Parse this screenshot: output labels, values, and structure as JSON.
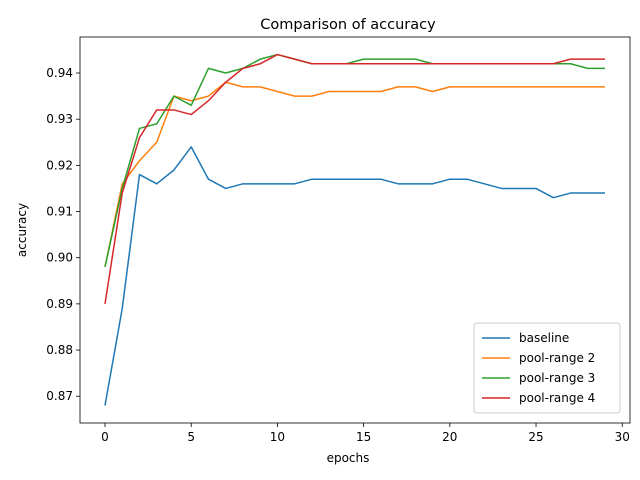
{
  "chart_data": {
    "type": "line",
    "title": "Comparison of accuracy",
    "xlabel": "epochs",
    "ylabel": "accuracy",
    "xlim": [
      -1.45,
      30.45
    ],
    "ylim": [
      0.8642,
      0.9478
    ],
    "xticks": [
      0,
      5,
      10,
      15,
      20,
      25,
      30
    ],
    "yticks": [
      0.87,
      0.88,
      0.89,
      0.9,
      0.91,
      0.92,
      0.93,
      0.94
    ],
    "grid": false,
    "legend_position": "lower-right",
    "x": [
      0,
      1,
      2,
      3,
      4,
      5,
      6,
      7,
      8,
      9,
      10,
      11,
      12,
      13,
      14,
      15,
      16,
      17,
      18,
      19,
      20,
      21,
      22,
      23,
      24,
      25,
      26,
      27,
      28,
      29
    ],
    "series": [
      {
        "name": "baseline",
        "color": "#1f77b4",
        "values": [
          0.868,
          0.889,
          0.918,
          0.916,
          0.919,
          0.924,
          0.917,
          0.915,
          0.916,
          0.916,
          0.916,
          0.916,
          0.917,
          0.917,
          0.917,
          0.917,
          0.917,
          0.916,
          0.916,
          0.916,
          0.917,
          0.917,
          0.916,
          0.915,
          0.915,
          0.915,
          0.913,
          0.914,
          0.914,
          0.914
        ]
      },
      {
        "name": "pool-range 2",
        "color": "#ff7f0e",
        "values": [
          0.898,
          0.916,
          0.921,
          0.925,
          0.935,
          0.934,
          0.935,
          0.938,
          0.937,
          0.937,
          0.936,
          0.935,
          0.935,
          0.936,
          0.936,
          0.936,
          0.936,
          0.937,
          0.937,
          0.936,
          0.937,
          0.937,
          0.937,
          0.937,
          0.937,
          0.937,
          0.937,
          0.937,
          0.937,
          0.937
        ]
      },
      {
        "name": "pool-range 3",
        "color": "#2ca02c",
        "values": [
          0.898,
          0.915,
          0.928,
          0.929,
          0.935,
          0.933,
          0.941,
          0.94,
          0.941,
          0.943,
          0.944,
          0.943,
          0.942,
          0.942,
          0.942,
          0.943,
          0.943,
          0.943,
          0.943,
          0.942,
          0.942,
          0.942,
          0.942,
          0.942,
          0.942,
          0.942,
          0.942,
          0.942,
          0.941,
          0.941
        ]
      },
      {
        "name": "pool-range 4",
        "color": "#d62728",
        "values": [
          0.89,
          0.914,
          0.926,
          0.932,
          0.932,
          0.931,
          0.934,
          0.938,
          0.941,
          0.942,
          0.944,
          0.943,
          0.942,
          0.942,
          0.942,
          0.942,
          0.942,
          0.942,
          0.942,
          0.942,
          0.942,
          0.942,
          0.942,
          0.942,
          0.942,
          0.942,
          0.942,
          0.943,
          0.943,
          0.943
        ]
      }
    ]
  }
}
